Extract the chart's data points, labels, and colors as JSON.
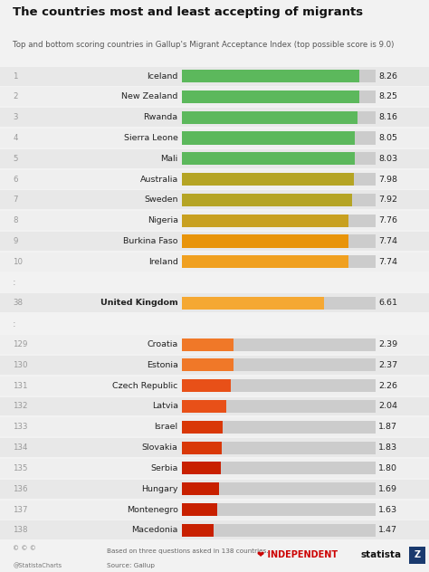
{
  "title": "The countries most and least accepting of migrants",
  "subtitle": "Top and bottom scoring countries in Gallup's Migrant Acceptance Index (top possible score is 9.0)",
  "background_color": "#f2f2f2",
  "entries": [
    {
      "rank": "1",
      "country": "Iceland",
      "value": 8.26,
      "color": "#5cb85c",
      "gap_before": false
    },
    {
      "rank": "2",
      "country": "New Zealand",
      "value": 8.25,
      "color": "#5cb85c",
      "gap_before": false
    },
    {
      "rank": "3",
      "country": "Rwanda",
      "value": 8.16,
      "color": "#5cb85c",
      "gap_before": false
    },
    {
      "rank": "4",
      "country": "Sierra Leone",
      "value": 8.05,
      "color": "#5cb85c",
      "gap_before": false
    },
    {
      "rank": "5",
      "country": "Mali",
      "value": 8.03,
      "color": "#5cb85c",
      "gap_before": false
    },
    {
      "rank": "6",
      "country": "Australia",
      "value": 7.98,
      "color": "#b5a424",
      "gap_before": false
    },
    {
      "rank": "7",
      "country": "Sweden",
      "value": 7.92,
      "color": "#b5a424",
      "gap_before": false
    },
    {
      "rank": "8",
      "country": "Nigeria",
      "value": 7.76,
      "color": "#c8a020",
      "gap_before": false
    },
    {
      "rank": "9",
      "country": "Burkina Faso",
      "value": 7.74,
      "color": "#e8940a",
      "gap_before": false
    },
    {
      "rank": "10",
      "country": "Ireland",
      "value": 7.74,
      "color": "#f0a020",
      "gap_before": false
    },
    {
      "rank": "38",
      "country": "United Kingdom",
      "value": 6.61,
      "color": "#f5a833",
      "gap_before": true,
      "bold": true
    },
    {
      "rank": "129",
      "country": "Croatia",
      "value": 2.39,
      "color": "#f07828",
      "gap_before": true,
      "bold": false
    },
    {
      "rank": "130",
      "country": "Estonia",
      "value": 2.37,
      "color": "#f07828",
      "gap_before": false
    },
    {
      "rank": "131",
      "country": "Czech Republic",
      "value": 2.26,
      "color": "#e85018",
      "gap_before": false
    },
    {
      "rank": "132",
      "country": "Latvia",
      "value": 2.04,
      "color": "#e85018",
      "gap_before": false
    },
    {
      "rank": "133",
      "country": "Israel",
      "value": 1.87,
      "color": "#d93808",
      "gap_before": false
    },
    {
      "rank": "134",
      "country": "Slovakia",
      "value": 1.83,
      "color": "#d93808",
      "gap_before": false
    },
    {
      "rank": "135",
      "country": "Serbia",
      "value": 1.8,
      "color": "#c82000",
      "gap_before": false
    },
    {
      "rank": "136",
      "country": "Hungary",
      "value": 1.69,
      "color": "#c82000",
      "gap_before": false
    },
    {
      "rank": "137",
      "country": "Montenegro",
      "value": 1.63,
      "color": "#c82000",
      "gap_before": false
    },
    {
      "rank": "138",
      "country": "Macedonia",
      "value": 1.47,
      "color": "#c82000",
      "gap_before": false
    }
  ],
  "max_value": 9.0,
  "title_fontsize": 9.5,
  "subtitle_fontsize": 6.2,
  "label_fontsize": 6.8,
  "rank_fontsize": 6.2,
  "value_fontsize": 6.8
}
